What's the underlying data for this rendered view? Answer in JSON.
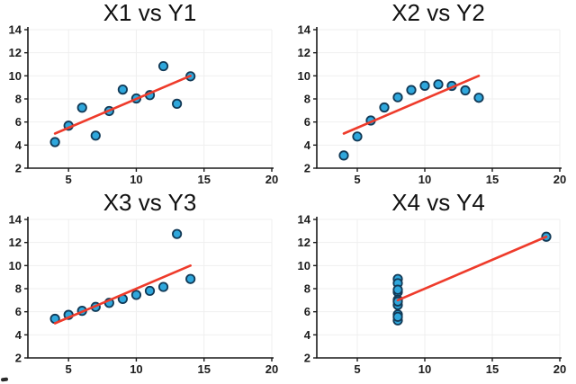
{
  "figure": {
    "background": "#ffffff",
    "layout": "2x2 scatter subplots (Anscombe-style quartet), each with red linear fit line"
  },
  "colors": {
    "marker_fill": "#2fa7dc",
    "marker_edge": "#123a57",
    "fit_line": "#ee3b2b",
    "grid": "#efefef",
    "axis": "#1a1a1a",
    "text": "#1c1c1c"
  },
  "chart_data": [
    {
      "type": "scatter",
      "title": "X1 vs Y1",
      "x": [
        4,
        5,
        6,
        7,
        8,
        9,
        10,
        11,
        12,
        13,
        14
      ],
      "y": [
        4.26,
        5.68,
        7.24,
        4.82,
        6.95,
        8.81,
        8.04,
        8.33,
        10.84,
        7.58,
        9.96
      ],
      "fit_line": {
        "x": [
          4,
          14
        ],
        "y": [
          5,
          10
        ]
      },
      "xlim": [
        2,
        20
      ],
      "ylim": [
        2,
        14
      ],
      "x_ticks": [
        5,
        10,
        15,
        20
      ],
      "y_ticks": [
        2,
        4,
        6,
        8,
        10,
        12,
        14
      ],
      "xlabel": "",
      "ylabel": "",
      "grid": true,
      "legend": null
    },
    {
      "type": "scatter",
      "title": "X2 vs Y2",
      "x": [
        4,
        5,
        6,
        7,
        8,
        9,
        10,
        11,
        12,
        13,
        14
      ],
      "y": [
        3.1,
        4.74,
        6.13,
        7.26,
        8.14,
        8.77,
        9.14,
        9.26,
        9.13,
        8.74,
        8.1
      ],
      "fit_line": {
        "x": [
          4,
          14
        ],
        "y": [
          5,
          10
        ]
      },
      "xlim": [
        2,
        20
      ],
      "ylim": [
        2,
        14
      ],
      "x_ticks": [
        5,
        10,
        15,
        20
      ],
      "y_ticks": [
        2,
        4,
        6,
        8,
        10,
        12,
        14
      ],
      "xlabel": "",
      "ylabel": "",
      "grid": true,
      "legend": null
    },
    {
      "type": "scatter",
      "title": "X3 vs Y3",
      "x": [
        4,
        5,
        6,
        7,
        8,
        9,
        10,
        11,
        12,
        13,
        14
      ],
      "y": [
        5.39,
        5.73,
        6.08,
        6.42,
        6.77,
        7.11,
        7.46,
        7.81,
        8.15,
        12.74,
        8.84
      ],
      "fit_line": {
        "x": [
          4,
          14
        ],
        "y": [
          5,
          10
        ]
      },
      "xlim": [
        2,
        20
      ],
      "ylim": [
        2,
        14
      ],
      "x_ticks": [
        5,
        10,
        15,
        20
      ],
      "y_ticks": [
        2,
        4,
        6,
        8,
        10,
        12,
        14
      ],
      "xlabel": "",
      "ylabel": "",
      "grid": true,
      "legend": null
    },
    {
      "type": "scatter",
      "title": "X4 vs Y4",
      "x": [
        8,
        8,
        8,
        8,
        8,
        8,
        8,
        8,
        8,
        8,
        19
      ],
      "y": [
        6.58,
        5.76,
        7.71,
        8.84,
        8.47,
        7.04,
        5.25,
        5.56,
        7.91,
        6.89,
        12.5
      ],
      "fit_line": {
        "x": [
          8,
          19
        ],
        "y": [
          7,
          12.5
        ]
      },
      "xlim": [
        2,
        20
      ],
      "ylim": [
        2,
        14
      ],
      "x_ticks": [
        5,
        10,
        15,
        20
      ],
      "y_ticks": [
        2,
        4,
        6,
        8,
        10,
        12,
        14
      ],
      "xlabel": "",
      "ylabel": "",
      "grid": true,
      "legend": null
    }
  ]
}
